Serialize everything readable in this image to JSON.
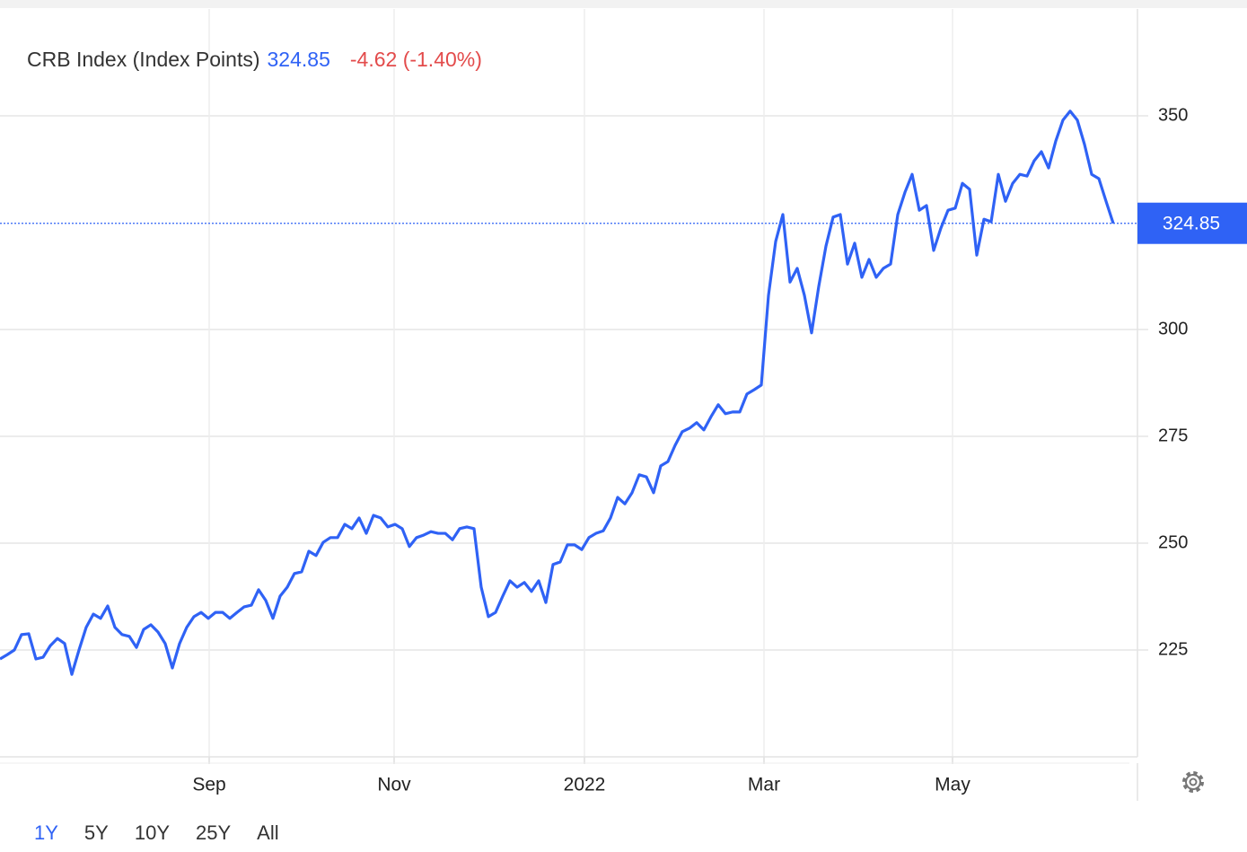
{
  "chart_data": {
    "type": "line",
    "title": "CRB Index (Index Points)",
    "change_text": "-4.62 (-1.40%)",
    "series": [
      {
        "color": "#2f62f5",
        "values": [
          222.9,
          223.9,
          225.0,
          228.6,
          228.8,
          222.9,
          223.3,
          226.0,
          227.7,
          226.5,
          219.3,
          225.0,
          230.3,
          233.4,
          232.4,
          235.3,
          230.3,
          228.6,
          228.2,
          225.6,
          229.8,
          230.9,
          229.2,
          226.5,
          220.8,
          226.5,
          230.3,
          232.8,
          233.8,
          232.4,
          233.8,
          233.8,
          232.4,
          233.8,
          235.1,
          235.5,
          239.1,
          236.6,
          232.4,
          237.6,
          239.7,
          242.9,
          243.3,
          248.1,
          247.1,
          250.2,
          251.3,
          251.3,
          254.4,
          253.4,
          255.9,
          252.3,
          256.5,
          255.9,
          253.8,
          254.4,
          253.4,
          249.2,
          251.3,
          251.9,
          252.7,
          252.3,
          252.3,
          250.8,
          253.4,
          253.8,
          253.4,
          239.7,
          232.8,
          233.8,
          237.6,
          241.2,
          239.7,
          240.8,
          238.7,
          241.2,
          236.1,
          245.0,
          245.6,
          249.6,
          249.6,
          248.5,
          251.3,
          252.3,
          252.9,
          255.9,
          260.7,
          259.2,
          261.8,
          266.0,
          265.5,
          261.8,
          268.1,
          269.1,
          272.9,
          276.1,
          276.9,
          278.2,
          276.5,
          279.6,
          282.4,
          280.3,
          280.7,
          280.7,
          284.9,
          285.9,
          287.0,
          308.0,
          320.6,
          326.9,
          311.1,
          314.3,
          308.0,
          299.2,
          310.1,
          319.5,
          326.3,
          326.9,
          315.3,
          320.2,
          312.2,
          316.4,
          312.2,
          314.3,
          315.3,
          326.9,
          332.1,
          336.3,
          327.9,
          329.0,
          318.5,
          323.7,
          327.9,
          328.4,
          334.2,
          332.8,
          317.4,
          325.8,
          325.2,
          336.3,
          330.0,
          334.2,
          336.3,
          335.9,
          339.5,
          341.6,
          337.8,
          344.1,
          349.0,
          351.1,
          349.0,
          343.3,
          336.3,
          335.3,
          330.0,
          324.85
        ]
      }
    ],
    "xlim": [
      0,
      158.375
    ],
    "xticks": [
      {
        "value": 29.125,
        "label": "Sep"
      },
      {
        "value": 54.875,
        "label": "Nov"
      },
      {
        "value": 81.375,
        "label": "2022"
      },
      {
        "value": 106.375,
        "label": "Mar"
      },
      {
        "value": 132.625,
        "label": "May"
      }
    ],
    "ylim": [
      200,
      375
    ],
    "yticks": [
      225,
      250,
      275,
      300,
      350
    ],
    "grid": true
  },
  "range_buttons": [
    "1Y",
    "5Y",
    "10Y",
    "25Y",
    "All"
  ],
  "active_range": 0
}
